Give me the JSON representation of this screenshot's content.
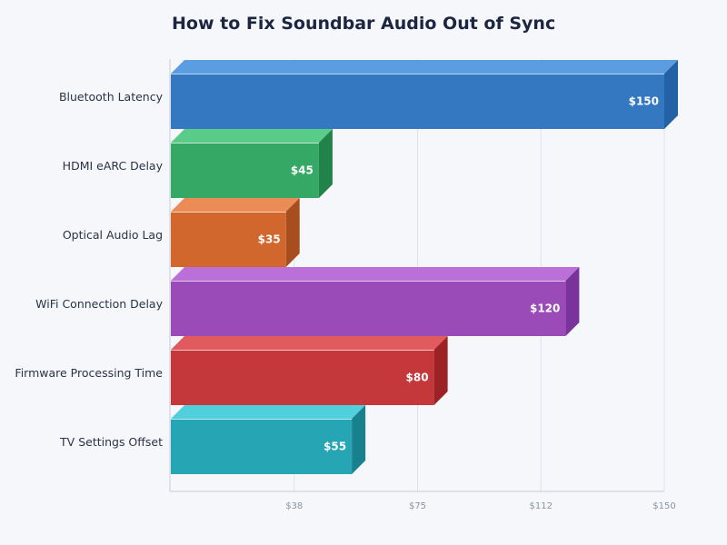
{
  "chart_data": {
    "type": "bar",
    "orientation": "horizontal",
    "style": "3d",
    "title": "How to Fix Soundbar Audio Out of Sync",
    "xlabel": "",
    "ylabel": "",
    "xlim": [
      0,
      150
    ],
    "grid": true,
    "x_ticks": [
      "$38",
      "$75",
      "$112",
      "$150"
    ],
    "x_tick_values": [
      37.5,
      75,
      112.5,
      150
    ],
    "categories": [
      "Bluetooth Latency",
      "HDMI eARC Delay",
      "Optical Audio Lag",
      "WiFi Connection Delay",
      "Firmware Processing Time",
      "TV Settings Offset"
    ],
    "values": [
      150,
      45,
      35,
      120,
      80,
      55
    ],
    "data_labels": [
      "$150",
      "$45",
      "$35",
      "$120",
      "$80",
      "$55"
    ],
    "colors": [
      {
        "front": "#3478c1",
        "top": "#5a9de0",
        "side": "#2462a6"
      },
      {
        "front": "#36a865",
        "top": "#58cc88",
        "side": "#22834a"
      },
      {
        "front": "#d2672e",
        "top": "#eb8b55",
        "side": "#a84d1e"
      },
      {
        "front": "#9a4bb8",
        "top": "#bb6fd8",
        "side": "#7a339a"
      },
      {
        "front": "#c4373b",
        "top": "#e05a5e",
        "side": "#9c2226"
      },
      {
        "front": "#26a5b5",
        "top": "#50d0dc",
        "side": "#19808e"
      }
    ]
  }
}
